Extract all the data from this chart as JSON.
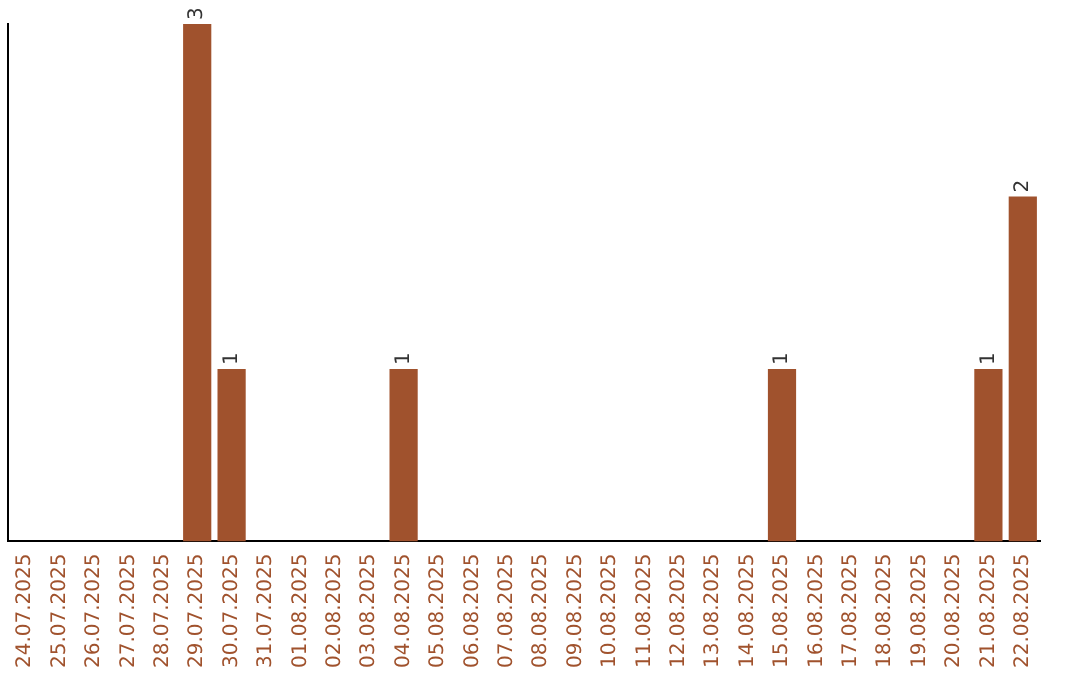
{
  "chart_data": {
    "type": "bar",
    "categories": [
      "24.07.2025",
      "25.07.2025",
      "26.07.2025",
      "27.07.2025",
      "28.07.2025",
      "29.07.2025",
      "30.07.2025",
      "31.07.2025",
      "01.08.2025",
      "02.08.2025",
      "03.08.2025",
      "04.08.2025",
      "05.08.2025",
      "06.08.2025",
      "07.08.2025",
      "08.08.2025",
      "09.08.2025",
      "10.08.2025",
      "11.08.2025",
      "12.08.2025",
      "13.08.2025",
      "14.08.2025",
      "15.08.2025",
      "16.08.2025",
      "17.08.2025",
      "18.08.2025",
      "19.08.2025",
      "20.08.2025",
      "21.08.2025",
      "22.08.2025"
    ],
    "values": [
      0,
      0,
      0,
      0,
      0,
      3,
      1,
      0,
      0,
      0,
      0,
      1,
      0,
      0,
      0,
      0,
      0,
      0,
      0,
      0,
      0,
      0,
      1,
      0,
      0,
      0,
      0,
      0,
      1,
      2
    ],
    "value_labels": [
      null,
      null,
      null,
      null,
      null,
      "3",
      "1",
      null,
      null,
      null,
      null,
      "1",
      null,
      null,
      null,
      null,
      null,
      null,
      null,
      null,
      null,
      null,
      "1",
      null,
      null,
      null,
      null,
      null,
      "1",
      "2"
    ],
    "color": "#a0522d",
    "grid": false,
    "legend": false,
    "tick_labels": "x"
  }
}
